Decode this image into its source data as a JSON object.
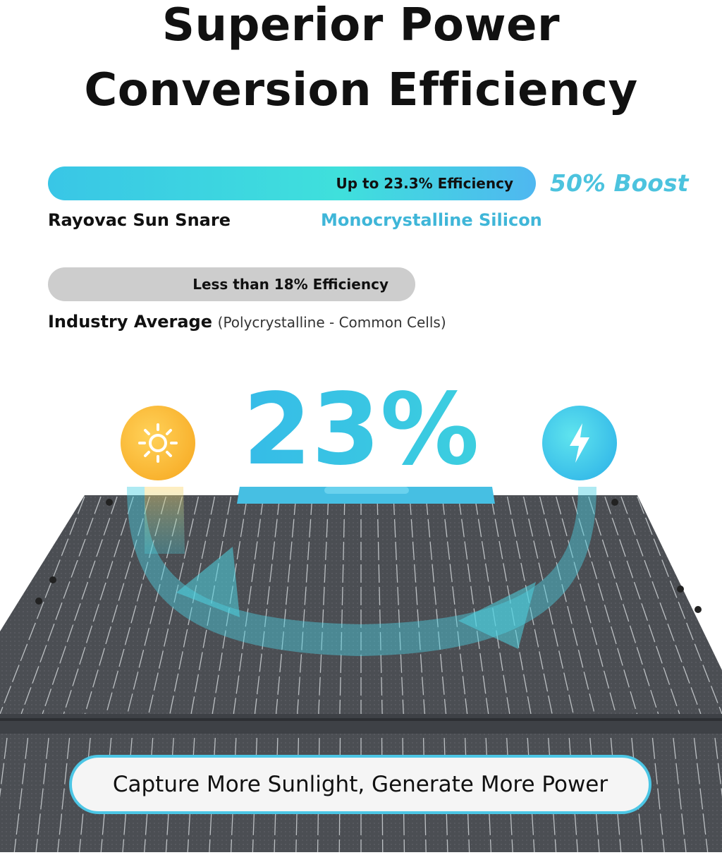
{
  "heading": {
    "line1": "Superior Power",
    "line2": "Conversion Efficiency"
  },
  "comparison": {
    "top_bar_text": "Up to 23.3% Efficiency",
    "boost_text": "50% Boost",
    "brand_label": "Rayovac Sun Snare",
    "material_label": "Monocrystalline Silicon",
    "bottom_bar_text": "Less than 18% Efficiency",
    "industry_label": "Industry Average",
    "industry_sub": "(Polycrystalline - Common Cells)"
  },
  "big_percent": "23%",
  "icons": {
    "left": "sun-icon",
    "right": "lightning-bolt-icon"
  },
  "tagline": "Capture More Sunlight, Generate More Power",
  "colors": {
    "accent": "#3fc8e4",
    "sun": "#f7aa20",
    "panel": "#4a4d52"
  }
}
